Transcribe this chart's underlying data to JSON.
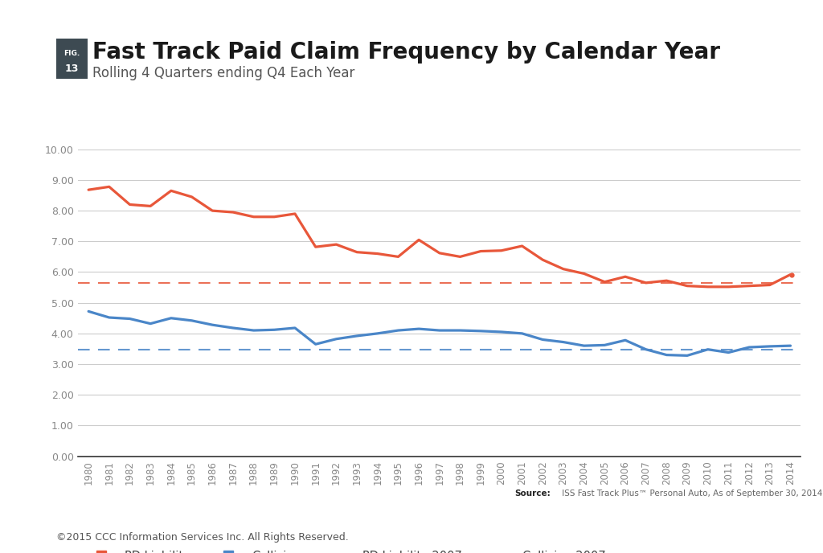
{
  "title": "Fast Track Paid Claim Frequency by Calendar Year",
  "subtitle": "Rolling 4 Quarters ending Q4 Each Year",
  "fig_label_line1": "FIG.",
  "fig_label_line2": "13",
  "source_bold": "Source:",
  "source_rest": " ISS Fast Track Plus™ Personal Auto, As of September 30, 2014.",
  "copyright_text": "©2015 CCC Information Services Inc. All Rights Reserved.",
  "years": [
    1980,
    1981,
    1982,
    1983,
    1984,
    1985,
    1986,
    1987,
    1988,
    1989,
    1990,
    1991,
    1992,
    1993,
    1994,
    1995,
    1996,
    1997,
    1998,
    1999,
    2000,
    2001,
    2002,
    2003,
    2004,
    2005,
    2006,
    2007,
    2008,
    2009,
    2010,
    2011,
    2012,
    2013,
    2014
  ],
  "pd_liability": [
    8.68,
    8.78,
    8.2,
    8.15,
    8.65,
    8.45,
    8.0,
    7.95,
    7.8,
    7.8,
    7.9,
    6.82,
    6.9,
    6.65,
    6.6,
    6.5,
    7.05,
    6.62,
    6.5,
    6.68,
    6.7,
    6.85,
    6.4,
    6.1,
    5.95,
    5.68,
    5.85,
    5.65,
    5.72,
    5.55,
    5.52,
    5.52,
    5.55,
    5.58,
    5.92
  ],
  "collision": [
    4.72,
    4.52,
    4.48,
    4.32,
    4.5,
    4.42,
    4.28,
    4.18,
    4.1,
    4.12,
    4.18,
    3.65,
    3.82,
    3.92,
    4.0,
    4.1,
    4.15,
    4.1,
    4.1,
    4.08,
    4.05,
    4.0,
    3.8,
    3.72,
    3.6,
    3.62,
    3.78,
    3.48,
    3.3,
    3.28,
    3.48,
    3.38,
    3.55,
    3.58,
    3.6
  ],
  "pd_liability_2007": 5.65,
  "collision_2007": 3.48,
  "pd_color": "#E8573A",
  "collision_color": "#4A86C8",
  "bg_color": "#FFFFFF",
  "grid_color": "#CCCCCC",
  "ylim": [
    0.0,
    10.0
  ],
  "yticks": [
    0.0,
    1.0,
    2.0,
    3.0,
    4.0,
    5.0,
    6.0,
    7.0,
    8.0,
    9.0,
    10.0
  ],
  "fig_bg_color": "#3D4A52",
  "fig_label_color": "#FFFFFF",
  "tick_color": "#888888",
  "spine_color": "#333333"
}
